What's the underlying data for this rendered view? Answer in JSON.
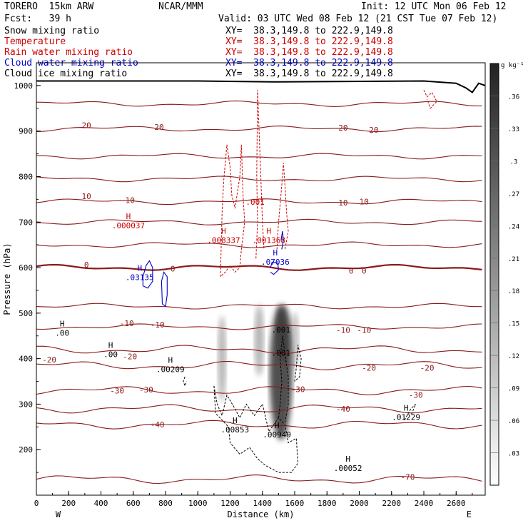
{
  "header": {
    "model": "TORERO  15km ARW",
    "center": "NCAR/MMM",
    "init": "Init: 12 UTC Mon 06 Feb 12",
    "fcst": "Fcst:   39 h",
    "valid": "Valid: 03 UTC Wed 08 Feb 12 (21 CST Tue 07 Feb 12)"
  },
  "legend": [
    {
      "name": "Snow mixing ratio",
      "xy": "XY=  38.3,149.8 to 222.9,149.8",
      "color": "#000000"
    },
    {
      "name": "Temperature",
      "xy": "XY=  38.3,149.8 to 222.9,149.8",
      "color": "#cc0000"
    },
    {
      "name": "Rain water mixing ratio",
      "xy": "XY=  38.3,149.8 to 222.9,149.8",
      "color": "#cc0000"
    },
    {
      "name": "Cloud water mixing ratio",
      "xy": "XY=  38.3,149.8 to 222.9,149.8",
      "color": "#0000cc"
    },
    {
      "name": "Cloud ice mixing ratio",
      "xy": "XY=  38.3,149.8 to 222.9,149.8",
      "color": "#000000"
    }
  ],
  "chart_data": {
    "type": "cross-section",
    "xlabel": "Distance (km)",
    "ylabel": "Pressure (hPa)",
    "xlim": [
      0,
      2780
    ],
    "ylim": [
      1050,
      100
    ],
    "x_ticks": [
      "0",
      "200",
      "400",
      "600",
      "800",
      "1000",
      "1200",
      "1400",
      "1600",
      "1800",
      "2000",
      "2200",
      "2400",
      "2600"
    ],
    "y_ticks": [
      "200",
      "300",
      "400",
      "500",
      "600",
      "700",
      "800",
      "900",
      "1000"
    ],
    "x_end_labels": {
      "left": "W",
      "right": "E"
    },
    "colorbar": {
      "unit": "g kg⁻¹",
      "ticks": [
        ".36",
        ".33",
        ".3",
        ".27",
        ".24",
        ".21",
        ".18",
        ".15",
        ".12",
        ".09",
        ".06",
        ".03"
      ]
    },
    "temperature_labels": [
      {
        "text": "-70",
        "x": 2300,
        "p": 140
      },
      {
        "text": "-40",
        "x": 750,
        "p": 255
      },
      {
        "text": "-40",
        "x": 1900,
        "p": 290
      },
      {
        "text": "-30",
        "x": 500,
        "p": 330
      },
      {
        "text": "-30",
        "x": 680,
        "p": 332
      },
      {
        "text": "-30",
        "x": 1620,
        "p": 333
      },
      {
        "text": "-30",
        "x": 2350,
        "p": 320
      },
      {
        "text": "-20",
        "x": 80,
        "p": 398
      },
      {
        "text": "-20",
        "x": 580,
        "p": 405
      },
      {
        "text": "-20",
        "x": 2060,
        "p": 380
      },
      {
        "text": "-20",
        "x": 2420,
        "p": 380
      },
      {
        "text": "-10",
        "x": 560,
        "p": 478
      },
      {
        "text": "-10",
        "x": 750,
        "p": 475
      },
      {
        "text": "-10",
        "x": 1900,
        "p": 463
      },
      {
        "text": "-10",
        "x": 2030,
        "p": 463
      },
      {
        "text": "0",
        "x": 310,
        "p": 606
      },
      {
        "text": "0",
        "x": 845,
        "p": 598
      },
      {
        "text": "0",
        "x": 1950,
        "p": 593
      },
      {
        "text": "0",
        "x": 2030,
        "p": 593
      },
      {
        "text": "10",
        "x": 310,
        "p": 757
      },
      {
        "text": "10",
        "x": 580,
        "p": 748
      },
      {
        "text": "10",
        "x": 1900,
        "p": 743
      },
      {
        "text": "10",
        "x": 2030,
        "p": 745
      },
      {
        "text": "20",
        "x": 310,
        "p": 913
      },
      {
        "text": "20",
        "x": 760,
        "p": 909
      },
      {
        "text": "20",
        "x": 1900,
        "p": 907
      },
      {
        "text": "20",
        "x": 2090,
        "p": 903
      }
    ],
    "extrema_labels": [
      {
        "mark": "H",
        "value": ".00",
        "x": 160,
        "p": 455,
        "color": "#000000"
      },
      {
        "mark": "H",
        "value": ".00",
        "x": 460,
        "p": 408,
        "color": "#000000"
      },
      {
        "mark": "H",
        "value": ".00209",
        "x": 830,
        "p": 375,
        "color": "#000000"
      },
      {
        "mark": "H",
        "value": ".00853",
        "x": 1230,
        "p": 243,
        "color": "#000000"
      },
      {
        "mark": "H",
        "value": ".00949",
        "x": 1490,
        "p": 232,
        "color": "#000000"
      },
      {
        "mark": "H",
        "value": ".00052",
        "x": 1930,
        "p": 158,
        "color": "#000000"
      },
      {
        "mark": "H",
        "value": ".01229",
        "x": 2290,
        "p": 270,
        "color": "#000000"
      },
      {
        "mark": "",
        "value": ".001",
        "x": 1515,
        "p": 411,
        "color": "#000000"
      },
      {
        "mark": "",
        "value": ".001",
        "x": 1515,
        "p": 462,
        "color": "#000000"
      },
      {
        "mark": "H",
        "value": ".03135",
        "x": 640,
        "p": 577,
        "color": "#0000cc"
      },
      {
        "mark": "H",
        "value": ".07036",
        "x": 1480,
        "p": 611,
        "color": "#0000cc"
      },
      {
        "mark": "H",
        "value": ".008337",
        "x": 1160,
        "p": 659,
        "color": "#cc0000"
      },
      {
        "mark": "H",
        "value": ".001368",
        "x": 1440,
        "p": 659,
        "color": "#cc0000"
      },
      {
        "mark": "H",
        "value": ".000037",
        "x": 570,
        "p": 691,
        "color": "#cc0000"
      },
      {
        "mark": "",
        "value": ".001",
        "x": 1355,
        "p": 743,
        "color": "#cc0000"
      }
    ]
  }
}
